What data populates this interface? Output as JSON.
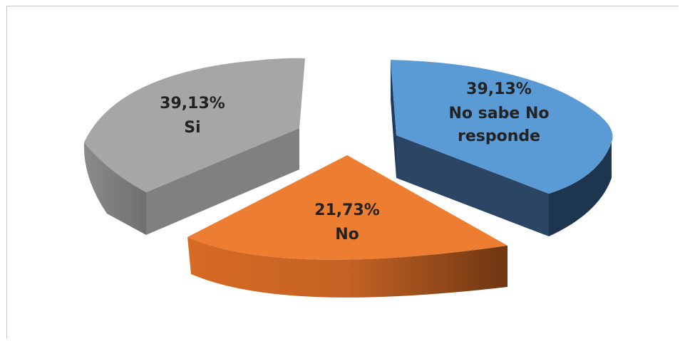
{
  "chart_data": {
    "type": "pie",
    "style": "3d-exploded",
    "slices": [
      {
        "label": "Si",
        "value": 39.13,
        "value_text": "39,13%",
        "color": "#a6a6a6",
        "side_color": "#7f7f7f",
        "text_color": "#222222"
      },
      {
        "label": "No",
        "value": 21.73,
        "value_text": "21,73%",
        "color": "#ed7d31",
        "side_color": "#b05a1f",
        "text_color": "#222222"
      },
      {
        "label": "No sabe No responde",
        "label_lines": [
          "No sabe No",
          "responde"
        ],
        "value": 39.13,
        "value_text": "39,13%",
        "color": "#5b9bd5",
        "side_color": "#2e4a6a",
        "text_color": "#222222"
      }
    ],
    "title": "",
    "legend": "none"
  }
}
